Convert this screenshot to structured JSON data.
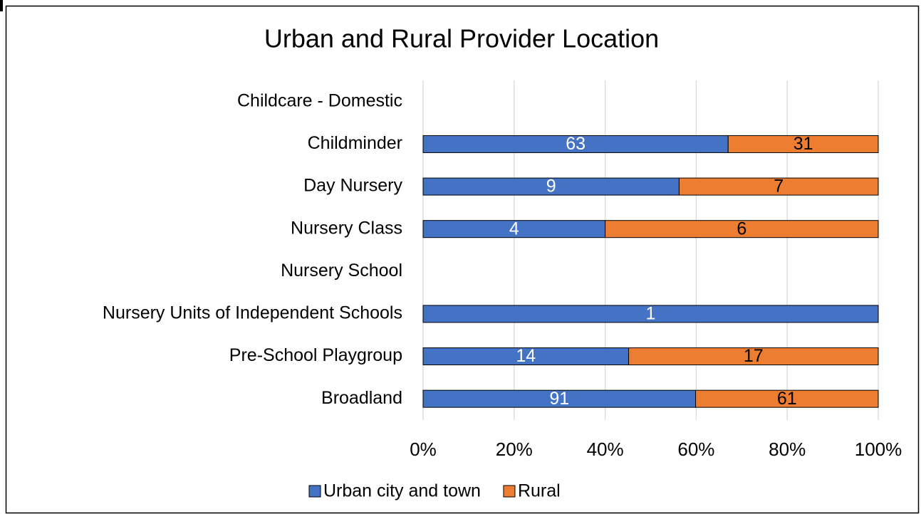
{
  "chart_data": {
    "type": "bar",
    "orientation": "horizontal",
    "stacked": "percent",
    "title": "Urban and Rural Provider Location",
    "categories": [
      "Childcare - Domestic",
      "Childminder",
      "Day Nursery",
      "Nursery Class",
      "Nursery School",
      "Nursery Units of Independent Schools",
      "Pre-School Playgroup",
      "Broadland"
    ],
    "series": [
      {
        "name": "Urban city and town",
        "color": "#4472c4",
        "label_color": "#ffffff",
        "values": [
          null,
          63,
          9,
          4,
          null,
          1,
          14,
          91
        ]
      },
      {
        "name": "Rural",
        "color": "#ed7d31",
        "label_color": "#000000",
        "values": [
          null,
          31,
          7,
          6,
          null,
          null,
          17,
          61
        ]
      }
    ],
    "xlim": [
      0,
      100
    ],
    "xticks": [
      {
        "value": 0,
        "label": "0%"
      },
      {
        "value": 20,
        "label": "20%"
      },
      {
        "value": 40,
        "label": "40%"
      },
      {
        "value": 60,
        "label": "60%"
      },
      {
        "value": 80,
        "label": "80%"
      },
      {
        "value": 100,
        "label": "100%"
      }
    ],
    "grid": true,
    "legend": "bottom"
  }
}
